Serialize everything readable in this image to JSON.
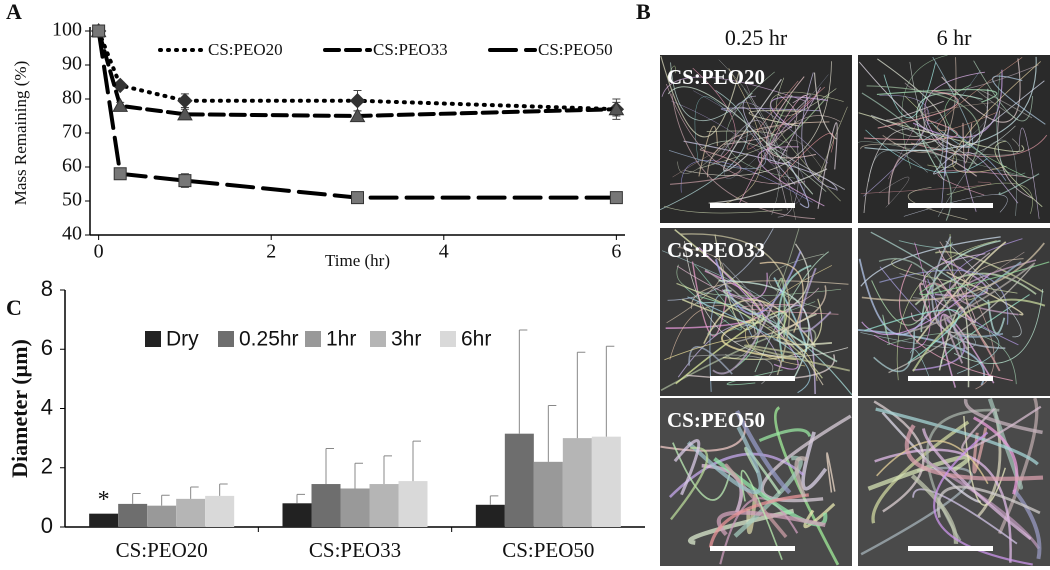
{
  "chart_data": [
    {
      "type": "line",
      "panel_label": "A",
      "x_label": "Time (hr)",
      "y_label": "Mass Remaining (%)",
      "x": [
        0,
        0.25,
        1,
        3,
        6
      ],
      "series": [
        {
          "name": "CS:PEO20",
          "color": "#333333",
          "marker": "diamond",
          "line_style": "dotted",
          "values": [
            100,
            84,
            79.5,
            79.5,
            77
          ],
          "errors": [
            0,
            1,
            2,
            3,
            3
          ]
        },
        {
          "name": "CS:PEO33",
          "color": "#555555",
          "marker": "triangle",
          "line_style": "dashed",
          "values": [
            100,
            78,
            75.5,
            75,
            77
          ],
          "errors": [
            0,
            1,
            1.5,
            1.5,
            2
          ]
        },
        {
          "name": "CS:PEO50",
          "color": "#777777",
          "marker": "square",
          "line_style": "long-dashed",
          "values": [
            100,
            58,
            56,
            51,
            51
          ],
          "errors": [
            0,
            1,
            2,
            1,
            1
          ]
        }
      ],
      "xlim": [
        -0.1,
        6.1
      ],
      "xticks": [
        0,
        2,
        4,
        6
      ],
      "ylim": [
        40,
        100
      ],
      "yticks": [
        40,
        50,
        60,
        70,
        80,
        90,
        100
      ]
    },
    {
      "type": "bar",
      "panel_label": "C",
      "y_label": "Diameter (µm)",
      "annotation": "*",
      "categories": [
        "CS:PEO20",
        "CS:PEO33",
        "CS:PEO50"
      ],
      "series": [
        {
          "name": "Dry",
          "color": "#222222",
          "values": [
            0.45,
            0.8,
            0.75
          ],
          "errors": [
            0,
            0.3,
            0.3
          ]
        },
        {
          "name": "0.25hr",
          "color": "#6e6e6e",
          "values": [
            0.78,
            1.45,
            3.15
          ],
          "errors": [
            0.35,
            1.2,
            3.5
          ]
        },
        {
          "name": "1hr",
          "color": "#999999",
          "values": [
            0.72,
            1.3,
            2.2
          ],
          "errors": [
            0.35,
            0.85,
            1.9
          ]
        },
        {
          "name": "3hr",
          "color": "#b5b5b5",
          "values": [
            0.95,
            1.45,
            3.0
          ],
          "errors": [
            0.4,
            0.95,
            2.9
          ]
        },
        {
          "name": "6hr",
          "color": "#d9d9d9",
          "values": [
            1.05,
            1.55,
            3.05
          ],
          "errors": [
            0.4,
            1.35,
            3.05
          ]
        }
      ],
      "ylim": [
        0,
        8
      ],
      "yticks": [
        0,
        2,
        4,
        6,
        8
      ]
    }
  ],
  "panel_b": {
    "label": "B",
    "columns": [
      "0.25 hr",
      "6 hr"
    ],
    "rows": [
      "CS:PEO20",
      "CS:PEO33",
      "CS:PEO50"
    ]
  }
}
